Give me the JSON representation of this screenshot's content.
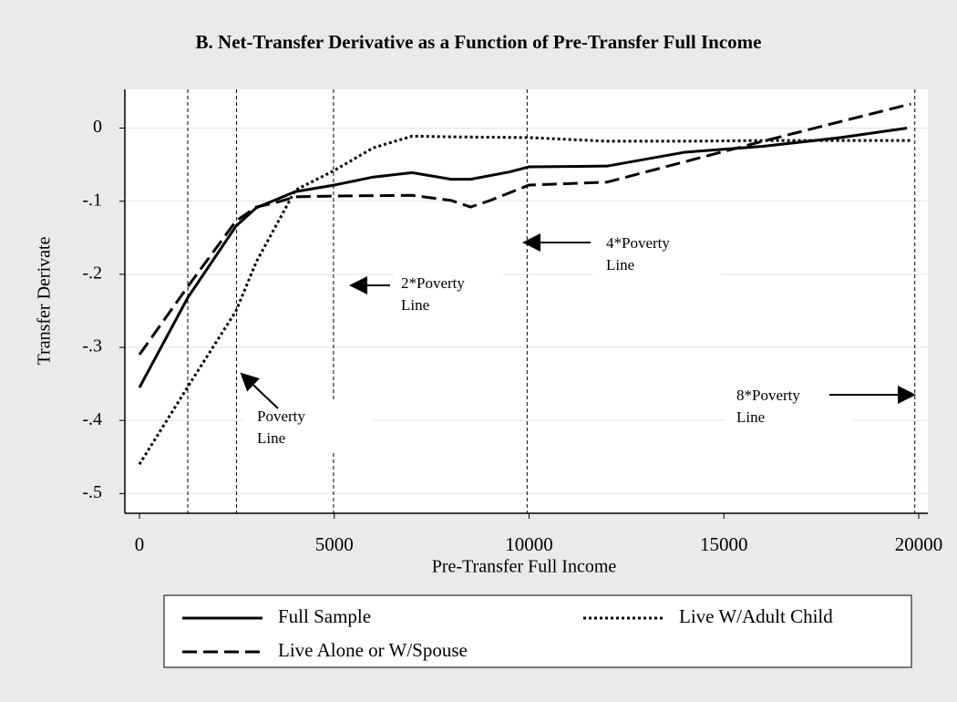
{
  "chart_data": {
    "type": "line",
    "title": "B. Net-Transfer Derivative as a Function of Pre-Transfer Full Income",
    "x_label": "Pre-Transfer Full Income",
    "y_label": "Transfer Derivate",
    "xlim": [
      -374,
      20234
    ],
    "ylim": [
      -0.527,
      0.053
    ],
    "xticks": [
      0,
      5000,
      10000,
      15000,
      20000
    ],
    "yticks": [
      {
        "value": 0,
        "label": "0"
      },
      {
        "value": -0.1,
        "label": "-.1"
      },
      {
        "value": -0.2,
        "label": "-.2"
      },
      {
        "value": -0.3,
        "label": "-.3"
      },
      {
        "value": -0.4,
        "label": "-.4"
      },
      {
        "value": -0.5,
        "label": "-.5"
      }
    ],
    "grid": true,
    "reference_lines": [
      1240,
      2490,
      4980,
      9950,
      19900
    ],
    "series": [
      {
        "name": "Full Sample",
        "color": "#000000",
        "dash": "solid",
        "x": [
          0,
          1240,
          2480,
          3000,
          4000,
          5000,
          6000,
          7000,
          8000,
          8500,
          9500,
          10000,
          12000,
          14000,
          16000,
          18000,
          19700
        ],
        "values": [
          -0.355,
          -0.232,
          -0.134,
          -0.109,
          -0.087,
          -0.078,
          -0.067,
          -0.061,
          -0.07,
          -0.07,
          -0.06,
          -0.053,
          -0.052,
          -0.033,
          -0.025,
          -0.013,
          0
        ]
      },
      {
        "name": "Live W/Adult Child",
        "color": "#000000",
        "dash": "dotted",
        "x": [
          0,
          1240,
          2480,
          3000,
          3500,
          4000,
          5000,
          6000,
          7000,
          8000,
          10000,
          12000,
          14000,
          16000,
          19800
        ],
        "values": [
          -0.46,
          -0.354,
          -0.25,
          -0.183,
          -0.134,
          -0.085,
          -0.058,
          -0.027,
          -0.011,
          -0.012,
          -0.013,
          -0.018,
          -0.018,
          -0.017,
          -0.017
        ]
      },
      {
        "name": "Live Alone or W/Spouse",
        "color": "#000000",
        "dash": "long-dash",
        "x": [
          0,
          1240,
          2480,
          3000,
          3500,
          4000,
          5000,
          7000,
          8000,
          8500,
          9000,
          10000,
          12000,
          13000,
          15000,
          16000,
          18000,
          19800
        ],
        "values": [
          -0.31,
          -0.217,
          -0.127,
          -0.108,
          -0.102,
          -0.094,
          -0.093,
          -0.092,
          -0.099,
          -0.108,
          -0.099,
          -0.078,
          -0.074,
          -0.06,
          -0.032,
          -0.018,
          0.009,
          0.033
        ]
      }
    ],
    "annotations": [
      {
        "lines": [
          "Poverty",
          "Line"
        ]
      },
      {
        "lines": [
          "2*Poverty",
          "Line"
        ]
      },
      {
        "lines": [
          "4*Poverty",
          "Line"
        ]
      },
      {
        "lines": [
          "8*Poverty",
          "Line"
        ]
      }
    ]
  }
}
